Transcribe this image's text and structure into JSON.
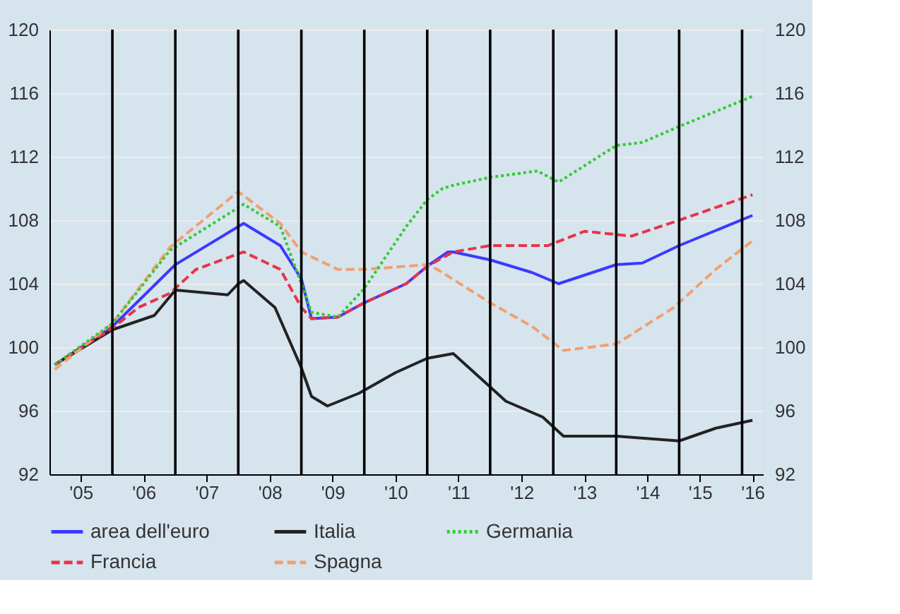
{
  "chart_data": {
    "type": "line",
    "xlim": [
      "2005-01",
      "2016-05"
    ],
    "xticks": [
      {
        "value": "2005-07",
        "label": "'05"
      },
      {
        "value": "2006-07",
        "label": "'06"
      },
      {
        "value": "2007-07",
        "label": "'07"
      },
      {
        "value": "2008-07",
        "label": "'08"
      },
      {
        "value": "2009-07",
        "label": "'09"
      },
      {
        "value": "2010-07",
        "label": "'10"
      },
      {
        "value": "2011-07",
        "label": "'11"
      },
      {
        "value": "2012-07",
        "label": "'12"
      },
      {
        "value": "2013-07",
        "label": "'13"
      },
      {
        "value": "2014-07",
        "label": "'14"
      },
      {
        "value": "2015-05",
        "label": "'15"
      },
      {
        "value": "2016-03",
        "label": "'16"
      }
    ],
    "ylim": [
      92,
      120
    ],
    "yticks": [
      92,
      96,
      100,
      104,
      108,
      112,
      116,
      120
    ],
    "y2lim": [
      92,
      120
    ],
    "y2ticks": [
      92,
      96,
      100,
      104,
      108,
      112,
      116,
      120
    ],
    "grid": "y",
    "legend": "bottom",
    "marker": "none",
    "ref_lines": [
      {
        "axis": "x",
        "value": "2006-01",
        "color": "#000000"
      },
      {
        "axis": "x",
        "value": "2007-01",
        "color": "#000000"
      },
      {
        "axis": "x",
        "value": "2008-01",
        "color": "#000000"
      },
      {
        "axis": "x",
        "value": "2009-01",
        "color": "#000000"
      },
      {
        "axis": "x",
        "value": "2010-01",
        "color": "#000000"
      },
      {
        "axis": "x",
        "value": "2011-01",
        "color": "#000000"
      },
      {
        "axis": "x",
        "value": "2012-01",
        "color": "#000000"
      },
      {
        "axis": "x",
        "value": "2013-01",
        "color": "#000000"
      },
      {
        "axis": "x",
        "value": "2014-01",
        "color": "#000000"
      },
      {
        "axis": "x",
        "value": "2015-01",
        "color": "#000000"
      },
      {
        "axis": "x",
        "value": "2016-01",
        "color": "#000000"
      }
    ],
    "series": [
      {
        "name": "area dell'euro",
        "color": "#3a3aff",
        "line_style": "solid",
        "x": [
          "2005-02",
          "2006-01",
          "2007-01",
          "2008-02",
          "2008-09",
          "2009-01",
          "2009-03",
          "2009-08",
          "2010-01",
          "2010-09",
          "2011-01",
          "2011-05",
          "2011-06",
          "2012-01",
          "2012-09",
          "2013-02",
          "2014-01",
          "2014-06",
          "2015-01",
          "2016-03"
        ],
        "values": [
          98.9,
          101.3,
          105.2,
          107.8,
          106.4,
          104.3,
          101.8,
          101.9,
          102.8,
          104.0,
          105.1,
          106.0,
          106.0,
          105.5,
          104.7,
          104.0,
          105.2,
          105.3,
          106.4,
          108.3
        ]
      },
      {
        "name": "Italia",
        "color": "#222222",
        "line_style": "solid",
        "x": [
          "2005-02",
          "2006-01",
          "2006-09",
          "2007-01",
          "2007-11",
          "2008-01",
          "2008-02",
          "2008-08",
          "2009-01",
          "2009-03",
          "2009-06",
          "2009-12",
          "2010-07",
          "2011-01",
          "2011-06",
          "2012-01",
          "2012-04",
          "2012-11",
          "2013-03",
          "2014-01",
          "2015-01",
          "2015-08",
          "2016-03"
        ],
        "values": [
          98.9,
          101.1,
          102.0,
          103.6,
          103.3,
          104.0,
          104.2,
          102.5,
          98.7,
          96.9,
          96.3,
          97.1,
          98.4,
          99.3,
          99.6,
          97.5,
          96.6,
          95.6,
          94.4,
          94.4,
          94.1,
          94.9,
          95.4
        ]
      },
      {
        "name": "Germania",
        "color": "#33cc33",
        "line_style": "dotted",
        "x": [
          "2005-02",
          "2006-01",
          "2006-12",
          "2008-02",
          "2008-09",
          "2009-01",
          "2009-03",
          "2009-08",
          "2010-01",
          "2010-09",
          "2011-01",
          "2011-04",
          "2011-06",
          "2012-01",
          "2012-10",
          "2013-02",
          "2014-01",
          "2014-06",
          "2015-01",
          "2016-03"
        ],
        "values": [
          98.9,
          101.5,
          106.1,
          109.0,
          107.6,
          104.0,
          102.2,
          101.9,
          103.7,
          107.6,
          109.3,
          110.0,
          110.2,
          110.7,
          111.1,
          110.4,
          112.7,
          112.9,
          113.9,
          115.8
        ]
      },
      {
        "name": "Francia",
        "color": "#e8334a",
        "line_style": "dashed",
        "x": [
          "2005-02",
          "2006-01",
          "2006-06",
          "2006-12",
          "2007-05",
          "2008-02",
          "2008-09",
          "2009-01",
          "2009-03",
          "2009-08",
          "2010-01",
          "2010-09",
          "2011-01",
          "2011-06",
          "2012-01",
          "2012-12",
          "2013-07",
          "2014-04",
          "2015-01",
          "2016-03"
        ],
        "values": [
          98.9,
          101.2,
          102.5,
          103.4,
          104.9,
          106.0,
          104.9,
          102.5,
          101.8,
          101.9,
          102.8,
          104.0,
          105.1,
          106.0,
          106.4,
          106.4,
          107.3,
          107.0,
          108.0,
          109.6
        ]
      },
      {
        "name": "Spagna",
        "color": "#f0a070",
        "line_style": "dashed",
        "x": [
          "2005-02",
          "2006-01",
          "2006-12",
          "2008-01",
          "2008-09",
          "2009-01",
          "2009-08",
          "2010-01",
          "2011-01",
          "2011-03",
          "2012-01",
          "2012-09",
          "2013-03",
          "2014-01",
          "2014-12",
          "2015-08",
          "2016-03"
        ],
        "values": [
          98.6,
          101.5,
          106.3,
          109.8,
          107.8,
          106.0,
          104.9,
          104.9,
          105.2,
          104.9,
          102.8,
          101.3,
          99.8,
          100.2,
          102.5,
          104.9,
          106.7
        ]
      }
    ]
  }
}
